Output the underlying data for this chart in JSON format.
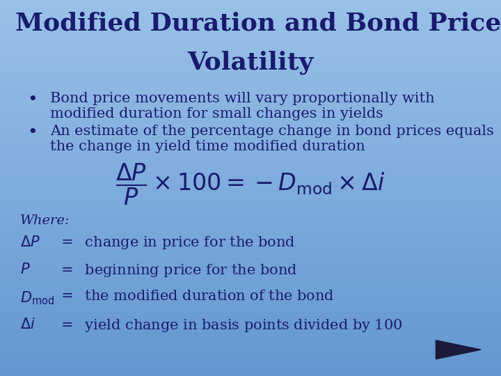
{
  "title_line1": "Modified Duration and Bond Price",
  "title_line2": "Volatility",
  "bullet1_line1": "Bond price movements will vary proportionally with",
  "bullet1_line2": "modified duration for small changes in yields",
  "bullet2_line1": "An estimate of the percentage change in bond prices equals",
  "bullet2_line2": "the change in yield time modified duration",
  "where_label": "Where:",
  "bg_color_tl": "#9ac4e8",
  "bg_color_tr": "#7ab0dc",
  "bg_color_bl": "#6da8d8",
  "bg_color_br": "#5090c8",
  "text_color": "#1a1a6e",
  "title_fontsize": 26,
  "bullet_fontsize": 15,
  "formula_fontsize": 24,
  "where_fontsize": 14,
  "def_fontsize": 15
}
